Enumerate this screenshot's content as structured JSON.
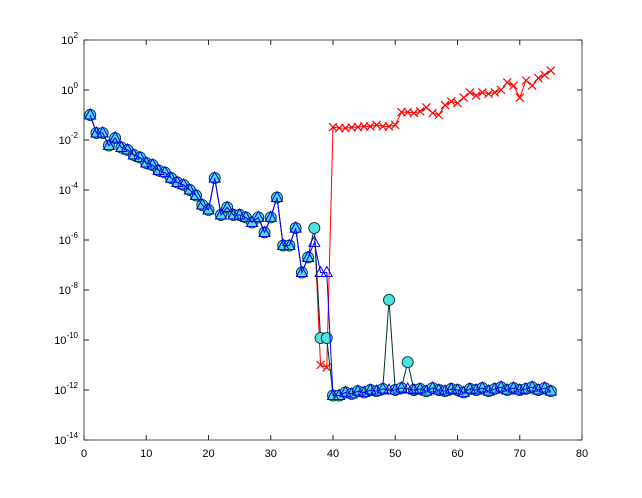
{
  "chart_data": {
    "type": "line",
    "log_y": true,
    "x": [
      1,
      2,
      3,
      4,
      5,
      6,
      7,
      8,
      9,
      10,
      11,
      12,
      13,
      14,
      15,
      16,
      17,
      18,
      19,
      20,
      21,
      22,
      23,
      24,
      25,
      26,
      27,
      28,
      29,
      30,
      31,
      32,
      33,
      34,
      35,
      36,
      37,
      38,
      39,
      40,
      41,
      42,
      43,
      44,
      45,
      46,
      47,
      48,
      49,
      50,
      51,
      52,
      53,
      54,
      55,
      56,
      57,
      58,
      59,
      60,
      61,
      62,
      63,
      64,
      65,
      66,
      67,
      68,
      69,
      70,
      71,
      72,
      73,
      74,
      75
    ],
    "xlim": [
      0,
      80
    ],
    "xticks": [
      0,
      10,
      20,
      30,
      40,
      50,
      60,
      70,
      80
    ],
    "ylim": [
      1e-14,
      100
    ],
    "yticks": [
      {
        "value": 1e-14,
        "label": "10^-14"
      },
      {
        "value": 1e-12,
        "label": "10^-12"
      },
      {
        "value": 1e-10,
        "label": "10^-10"
      },
      {
        "value": 1e-08,
        "label": "10^-8"
      },
      {
        "value": 1e-06,
        "label": "10^-6"
      },
      {
        "value": 0.0001,
        "label": "10^-4"
      },
      {
        "value": 0.01,
        "label": "10^-2"
      },
      {
        "value": 1,
        "label": "10^0"
      },
      {
        "value": 100,
        "label": "10^2"
      }
    ],
    "series": [
      {
        "color": "#ff0000",
        "marker": "x",
        "values": [
          0.1,
          0.019,
          0.019,
          0.006,
          0.012,
          0.005,
          0.004,
          0.0025,
          0.002,
          0.0012,
          0.001,
          0.0006,
          0.0005,
          0.0003,
          0.0002,
          0.00016,
          0.0001,
          6e-05,
          2.5e-05,
          1.6e-05,
          0.0003,
          1e-05,
          2e-05,
          1e-05,
          1e-05,
          8e-06,
          5e-06,
          8e-06,
          2e-06,
          8e-06,
          5e-05,
          6e-07,
          6e-07,
          3e-06,
          5e-08,
          2e-07,
          3e-06,
          1e-11,
          8e-12,
          0.033,
          0.03,
          0.03,
          0.032,
          0.033,
          0.035,
          0.035,
          0.04,
          0.035,
          0.035,
          0.04,
          0.13,
          0.13,
          0.12,
          0.14,
          0.2,
          0.12,
          0.1,
          0.25,
          0.35,
          0.3,
          0.5,
          0.8,
          0.6,
          0.8,
          0.7,
          0.8,
          1,
          2,
          1.5,
          0.5,
          2.4,
          1.5,
          3,
          4,
          6
        ]
      },
      {
        "color": "#003333",
        "marker": "o",
        "marker_fill": "#4fe0e0",
        "values": [
          0.1,
          0.019,
          0.019,
          0.006,
          0.012,
          0.005,
          0.004,
          0.0025,
          0.002,
          0.0012,
          0.001,
          0.0006,
          0.0005,
          0.0003,
          0.0002,
          0.00016,
          0.0001,
          6e-05,
          2.5e-05,
          1.6e-05,
          0.0003,
          1e-05,
          2e-05,
          1e-05,
          1e-05,
          8e-06,
          5e-06,
          8e-06,
          2e-06,
          8e-06,
          5e-05,
          6e-07,
          6e-07,
          3e-06,
          5e-08,
          2e-07,
          3e-06,
          1.2e-10,
          1.2e-10,
          6e-13,
          6e-13,
          8e-13,
          7e-13,
          9e-13,
          8e-13,
          1e-12,
          9e-13,
          1.1e-12,
          4e-09,
          1e-12,
          1.2e-12,
          1.3e-11,
          1e-12,
          1.1e-12,
          9e-13,
          1.2e-12,
          1e-12,
          9e-13,
          1.1e-12,
          1e-12,
          8e-13,
          1.1e-12,
          1e-12,
          1.2e-12,
          9e-13,
          1.1e-12,
          1.3e-12,
          1e-12,
          1.2e-12,
          1e-12,
          1.1e-12,
          1.3e-12,
          1e-12,
          1.2e-12,
          9e-13
        ]
      },
      {
        "color": "#0000ff",
        "marker": "^",
        "values": [
          0.1,
          0.019,
          0.019,
          0.006,
          0.012,
          0.005,
          0.004,
          0.0025,
          0.002,
          0.0012,
          0.001,
          0.0006,
          0.0005,
          0.0003,
          0.0002,
          0.00016,
          0.0001,
          6e-05,
          2.5e-05,
          1.6e-05,
          0.0003,
          1e-05,
          2e-05,
          1e-05,
          1e-05,
          8e-06,
          5e-06,
          8e-06,
          2e-06,
          8e-06,
          5e-05,
          6e-07,
          6e-07,
          3e-06,
          5e-08,
          2e-07,
          8e-07,
          5e-08,
          5e-08,
          6e-13,
          6e-13,
          8e-13,
          7e-13,
          9e-13,
          8e-13,
          1e-12,
          9e-13,
          1.1e-12,
          1e-12,
          1e-12,
          1.2e-12,
          1.1e-12,
          1e-12,
          1.1e-12,
          9e-13,
          1.2e-12,
          1e-12,
          9e-13,
          1.1e-12,
          1e-12,
          8e-13,
          1.1e-12,
          1e-12,
          1.2e-12,
          9e-13,
          1.1e-12,
          1.3e-12,
          1e-12,
          1.2e-12,
          1e-12,
          1.1e-12,
          1.3e-12,
          1e-12,
          1.2e-12,
          9e-13
        ]
      }
    ]
  }
}
